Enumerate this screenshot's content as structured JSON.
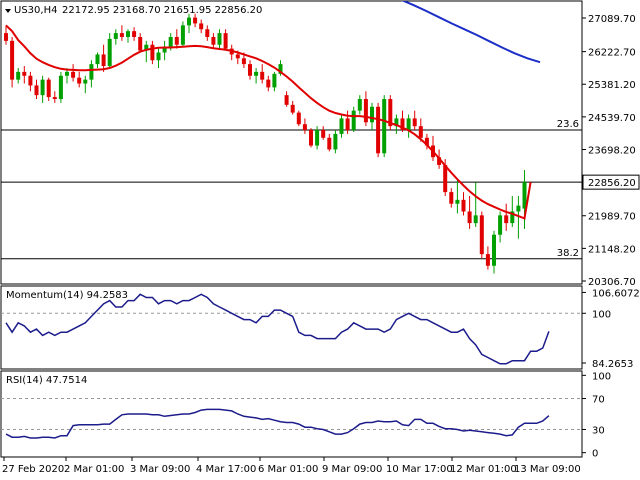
{
  "header": {
    "symbol_label": "US30,H4",
    "ohlc_text": "22172.95 23168.70 21651.95 22856.20"
  },
  "colors": {
    "bull": "#00a000",
    "bear": "#e00000",
    "ma_fast": "#e00000",
    "ma_slow": "#1c2ec8",
    "osc": "#1c1c8c",
    "frame": "#000000",
    "price_tag_bg": "#ffffff"
  },
  "chart_data": [
    {
      "type": "candlestick",
      "title": "US30,H4",
      "ylim": [
        20306.7,
        27700
      ],
      "y_ticks": [
        20306.7,
        21148.2,
        21989.7,
        22856.2,
        23698.2,
        24539.7,
        25381.2,
        26222.7,
        27089.7
      ],
      "y_tick_labels": [
        "20306.70",
        "21148.20",
        "21989.70",
        "22856.20",
        "23698.20",
        "24539.70",
        "25381.20",
        "26222.70",
        "27089.70"
      ],
      "current_price": 22856.2,
      "current_price_label": "22856.20",
      "x_tick_labels": [
        "27 Feb 2020",
        "2 Mar 01:00",
        "3 Mar 09:00",
        "4 Mar 17:00",
        "6 Mar 01:00",
        "9 Mar 09:00",
        "10 Mar 17:00",
        "12 Mar 01:00",
        "13 Mar 09:00"
      ],
      "horizontal_lines": [
        {
          "value": 24200,
          "label": "23.6"
        },
        {
          "value": 22856.2,
          "label": ""
        },
        {
          "value": 20880,
          "label": "38.2"
        }
      ],
      "candles": [
        [
          26700,
          26900,
          26400,
          26500
        ],
        [
          26500,
          26600,
          25300,
          25500
        ],
        [
          25500,
          25800,
          25400,
          25700
        ],
        [
          25700,
          25850,
          25400,
          25600
        ],
        [
          25600,
          25700,
          25200,
          25350
        ],
        [
          25350,
          25500,
          25000,
          25100
        ],
        [
          25100,
          25600,
          24900,
          25500
        ],
        [
          25500,
          25550,
          24950,
          25050
        ],
        [
          25050,
          25200,
          24900,
          25000
        ],
        [
          25000,
          25700,
          24900,
          25600
        ],
        [
          25600,
          25800,
          25400,
          25700
        ],
        [
          25700,
          25900,
          25450,
          25550
        ],
        [
          25550,
          25700,
          25300,
          25400
        ],
        [
          25400,
          25600,
          25150,
          25500
        ],
        [
          25500,
          26000,
          25300,
          25900
        ],
        [
          25900,
          26200,
          25800,
          26150
        ],
        [
          26150,
          26400,
          25700,
          25850
        ],
        [
          25850,
          26700,
          25800,
          26550
        ],
        [
          26550,
          26800,
          26400,
          26700
        ],
        [
          26700,
          26900,
          26500,
          26600
        ],
        [
          26600,
          26800,
          26450,
          26750
        ],
        [
          26750,
          26850,
          26500,
          26600
        ],
        [
          26600,
          26700,
          26200,
          26250
        ],
        [
          26250,
          26500,
          25950,
          26400
        ],
        [
          26400,
          26500,
          25900,
          26000
        ],
        [
          26000,
          26300,
          25800,
          26200
        ],
        [
          26200,
          26500,
          26000,
          26350
        ],
        [
          26350,
          26700,
          26250,
          26600
        ],
        [
          26600,
          26800,
          26300,
          26400
        ],
        [
          26400,
          27000,
          26350,
          26900
        ],
        [
          26900,
          27200,
          26700,
          27100
        ],
        [
          27100,
          27200,
          26850,
          26950
        ],
        [
          26950,
          27050,
          26700,
          26800
        ],
        [
          26800,
          26900,
          26500,
          26600
        ],
        [
          26600,
          26700,
          26300,
          26400
        ],
        [
          26400,
          26800,
          26300,
          26700
        ],
        [
          26700,
          26800,
          26250,
          26300
        ],
        [
          26300,
          26400,
          26000,
          26150
        ],
        [
          26150,
          26250,
          25900,
          26050
        ],
        [
          26050,
          26200,
          25800,
          25900
        ],
        [
          25900,
          26000,
          25500,
          25600
        ],
        [
          25600,
          25800,
          25400,
          25700
        ],
        [
          25700,
          25900,
          25400,
          25500
        ],
        [
          25500,
          25600,
          25200,
          25300
        ],
        [
          25300,
          25700,
          25200,
          25650
        ],
        [
          25650,
          26000,
          25600,
          25900
        ],
        [
          25100,
          25200,
          24800,
          24850
        ],
        [
          24850,
          24950,
          24600,
          24650
        ],
        [
          24650,
          24700,
          24300,
          24350
        ],
        [
          24350,
          24500,
          24100,
          24200
        ],
        [
          24200,
          24250,
          23750,
          23800
        ],
        [
          23800,
          24300,
          23700,
          24200
        ],
        [
          24200,
          24300,
          23950,
          24000
        ],
        [
          24000,
          24100,
          23650,
          23700
        ],
        [
          23700,
          24200,
          23600,
          24100
        ],
        [
          24100,
          24600,
          24000,
          24500
        ],
        [
          24500,
          24700,
          24100,
          24200
        ],
        [
          24200,
          24800,
          24150,
          24700
        ],
        [
          24700,
          25100,
          24600,
          25000
        ],
        [
          25000,
          25200,
          24300,
          24400
        ],
        [
          24400,
          24900,
          24200,
          24800
        ],
        [
          24800,
          24900,
          23500,
          23600
        ],
        [
          23600,
          25100,
          23500,
          25000
        ],
        [
          25000,
          25100,
          24200,
          24300
        ],
        [
          24300,
          24600,
          24100,
          24500
        ],
        [
          24500,
          24700,
          24150,
          24200
        ],
        [
          24200,
          24600,
          24000,
          24500
        ],
        [
          24500,
          24700,
          24200,
          24300
        ],
        [
          24300,
          24500,
          23900,
          24000
        ],
        [
          24000,
          24100,
          23700,
          23800
        ],
        [
          23800,
          24050,
          23400,
          23500
        ],
        [
          23500,
          23700,
          23200,
          23300
        ],
        [
          23300,
          23450,
          22500,
          22600
        ],
        [
          22600,
          22700,
          22200,
          22300
        ],
        [
          22300,
          22900,
          22050,
          22400
        ],
        [
          22400,
          22600,
          22000,
          22100
        ],
        [
          22100,
          22500,
          21650,
          21800
        ],
        [
          21800,
          22850,
          21700,
          22000
        ],
        [
          22000,
          22100,
          20900,
          21000
        ],
        [
          21000,
          21200,
          20600,
          20700
        ],
        [
          20700,
          21600,
          20500,
          21500
        ],
        [
          21500,
          22100,
          21300,
          22000
        ],
        [
          22000,
          22300,
          21600,
          21800
        ],
        [
          21800,
          22500,
          21700,
          22100
        ],
        [
          22100,
          22500,
          21400,
          22250
        ],
        [
          22172.95,
          23168.7,
          21651.95,
          22856.2
        ]
      ]
    },
    {
      "type": "line",
      "series": [
        {
          "name": "",
          "values": [
            26900,
            26750,
            26520,
            26360,
            26180,
            26040,
            25950,
            25880,
            25820,
            25780,
            25760,
            25750,
            25740,
            25740,
            25750,
            25760,
            25770,
            25800,
            25860,
            25940,
            26040,
            26140,
            26220,
            26270,
            26300,
            26320,
            26330,
            26330,
            26340,
            26350,
            26360,
            26370,
            26360,
            26340,
            26310,
            26290,
            26270,
            26240,
            26200,
            26150,
            26100,
            26050,
            25980,
            25900,
            25810,
            25700,
            25580,
            25450,
            25300,
            25160,
            25020,
            24900,
            24790,
            24700,
            24640,
            24600,
            24570,
            24560,
            24560,
            24540,
            24510,
            24480,
            24440,
            24380,
            24330,
            24260,
            24190,
            24090,
            23960,
            23820,
            23650,
            23470,
            23280,
            23100,
            22930,
            22770,
            22620,
            22490,
            22380,
            22290,
            22220,
            22150,
            22090,
            22040,
            21980,
            21920,
            22856
          ]
        }
      ]
    },
    {
      "type": "line",
      "series": [
        {
          "name": "",
          "values": [
            28400,
            28300,
            28200,
            28100,
            28000,
            27900,
            27800,
            27690,
            27560,
            27420,
            27270,
            27110,
            26950,
            26800,
            26650,
            26490,
            26330,
            26180,
            26050,
            25950
          ]
        }
      ]
    },
    {
      "type": "line",
      "title": "Momentum(14) 94.2583",
      "ylim": [
        83,
        108
      ],
      "y_tick_labels": [
        "106.6072",
        "100",
        "84.2653"
      ],
      "y_ticks": [
        106.6072,
        100,
        84.2653
      ],
      "reference_lines": [
        100
      ],
      "series": [
        {
          "name": "Momentum(14)",
          "values": [
            97,
            94,
            97,
            96,
            94,
            95,
            93,
            94,
            93,
            94,
            94,
            95,
            96,
            97,
            99,
            101,
            103,
            104,
            102,
            102,
            104,
            104,
            106,
            105,
            105,
            103,
            104,
            104,
            103,
            104,
            104,
            105,
            106,
            105,
            103,
            102,
            101,
            100,
            99,
            98,
            98,
            97,
            99,
            99,
            101,
            101,
            100,
            99,
            94,
            93,
            93,
            92,
            92,
            92,
            92,
            94,
            95,
            97,
            96,
            95,
            95,
            95,
            94,
            95,
            98,
            99,
            100,
            99,
            98,
            98,
            97,
            96,
            95,
            94,
            94,
            95,
            92,
            90,
            87,
            86,
            85,
            84,
            84,
            85,
            85,
            85,
            88,
            88,
            89,
            94.2583
          ]
        }
      ]
    },
    {
      "type": "line",
      "title": "RSI(14) 47.7514",
      "ylim": [
        0,
        100
      ],
      "y_tick_labels": [
        "100",
        "70",
        "30",
        "0"
      ],
      "y_ticks": [
        100,
        70,
        30,
        0
      ],
      "reference_lines": [
        70,
        30
      ],
      "series": [
        {
          "name": "RSI(14)",
          "values": [
            24,
            20,
            20,
            21,
            19,
            19,
            20,
            20,
            19,
            22,
            22,
            35,
            36,
            36,
            36,
            36,
            37,
            37,
            43,
            49,
            50,
            50,
            50,
            50,
            49,
            49,
            47,
            48,
            49,
            50,
            50,
            52,
            55,
            56,
            56,
            56,
            55,
            54,
            50,
            47,
            46,
            45,
            43,
            44,
            42,
            40,
            39,
            39,
            37,
            33,
            33,
            31,
            30,
            27,
            24,
            24,
            26,
            31,
            37,
            39,
            39,
            41,
            40,
            40,
            41,
            36,
            35,
            43,
            43,
            38,
            38,
            34,
            31,
            31,
            30,
            28,
            29,
            28,
            27,
            26,
            25,
            24,
            22,
            23,
            33,
            38,
            38,
            38,
            41,
            47.7514
          ]
        }
      ]
    }
  ]
}
